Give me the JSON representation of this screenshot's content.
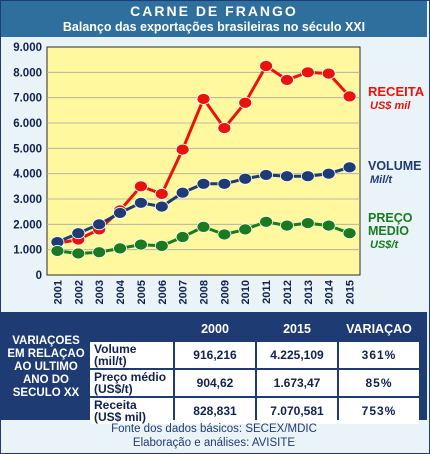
{
  "header": {
    "title": "CARNE DE FRANGO",
    "subtitle": "Balanço das exportações brasileiras no século XXI"
  },
  "chart_data": {
    "type": "line",
    "x": [
      "2001",
      "2002",
      "2003",
      "2004",
      "2005",
      "2006",
      "2007",
      "2008",
      "2009",
      "2010",
      "2011",
      "2012",
      "2013",
      "2014",
      "2015"
    ],
    "ylim": [
      0,
      9000
    ],
    "yticks": [
      "0",
      "1.000",
      "2.000",
      "3.000",
      "4.000",
      "5.000",
      "6.000",
      "7.000",
      "8.000",
      "9.000"
    ],
    "grid": true,
    "series": [
      {
        "name": "RECEITA",
        "unit": "US$ mil",
        "color": "#e8140c",
        "values": [
          1250,
          1400,
          1800,
          2550,
          3500,
          3200,
          4950,
          6950,
          5800,
          6800,
          8250,
          7700,
          8000,
          7950,
          7050
        ]
      },
      {
        "name": "VOLUME",
        "unit": "Mil/t",
        "color": "#1f3b73",
        "values": [
          1300,
          1650,
          2000,
          2450,
          2850,
          2700,
          3250,
          3600,
          3600,
          3800,
          3950,
          3900,
          3900,
          4000,
          4250
        ]
      },
      {
        "name": "PREÇO MEDIO",
        "unit": "US$/t",
        "color": "#1a7a20",
        "values": [
          950,
          850,
          900,
          1050,
          1200,
          1150,
          1500,
          1900,
          1600,
          1800,
          2100,
          1950,
          2050,
          1950,
          1650
        ]
      }
    ]
  },
  "legend": {
    "receita": {
      "name": "RECEITA",
      "unit": "US$ mil",
      "color": "#e8140c"
    },
    "volume": {
      "name": "VOLUME",
      "unit": "Mil/t",
      "color": "#1f3b73"
    },
    "preco_line1": "PREÇO",
    "preco_line2": "MEDIO",
    "preco_unit": "US$/t",
    "preco_color": "#1a7a20"
  },
  "table": {
    "side_label": "VARIAÇOES EM RELAÇAO AO ULTIMO ANO DO SECULO XX",
    "headers": [
      "2000",
      "2015",
      "VARIAÇAO"
    ],
    "rows": [
      {
        "label1": "Volume",
        "label2": "(mil/t)",
        "v2000": "916,216",
        "v2015": "4.225,109",
        "change": "361%"
      },
      {
        "label1": "Preço médio",
        "label2": "(US$/t)",
        "v2000": "904,62",
        "v2015": "1.673,47",
        "change": "85%"
      },
      {
        "label1": "Receita",
        "label2": "(US$ mil)",
        "v2000": "828,831",
        "v2015": "7.070,581",
        "change": "753%"
      }
    ]
  },
  "footer": {
    "line1": "Fonte dos dados básicos: SECEX/MDIC",
    "line2": "Elaboração e análises: AVISITE"
  }
}
